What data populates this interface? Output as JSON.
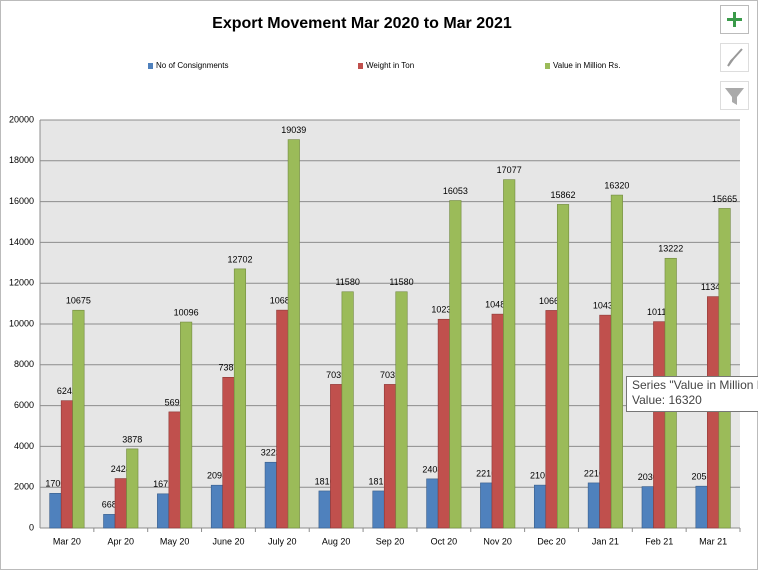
{
  "chart_data": {
    "type": "bar",
    "title": "Export Movement Mar 2020 to Mar 2021",
    "categories": [
      "Mar 20",
      "Apr 20",
      "May 20",
      "June 20",
      "July 20",
      "Aug 20",
      "Sep 20",
      "Oct 20",
      "Nov 20",
      "Dec 20",
      "Jan 21",
      "Feb 21",
      "Mar 21"
    ],
    "series": [
      {
        "name": "No of Consignments",
        "color": "#4f81bd",
        "values": [
          1700,
          668,
          1675,
          2098,
          3223,
          1816,
          1816,
          2408,
          2210,
          2102,
          2210,
          2030,
          2050
        ]
      },
      {
        "name": "Weight in Ton",
        "color": "#c0504d",
        "values": [
          6242,
          2424,
          5692,
          7387,
          10680,
          7039,
          7039,
          10233,
          10484,
          10665,
          10434,
          10115,
          11342
        ]
      },
      {
        "name": "Value in Million Rs.",
        "color": "#9bbb59",
        "values": [
          10675,
          3878,
          10096,
          12702,
          19039,
          11580,
          11580,
          16053,
          17077,
          15862,
          16320,
          13222,
          15665
        ]
      }
    ],
    "ylim": [
      0,
      20000
    ],
    "yticks": [
      0,
      2000,
      4000,
      6000,
      8000,
      10000,
      12000,
      14000,
      16000,
      18000,
      20000
    ],
    "grid": true,
    "legend": "top"
  },
  "tooltip": {
    "line1": "Series \"Value in Million R",
    "line2": "Value: 16320"
  }
}
